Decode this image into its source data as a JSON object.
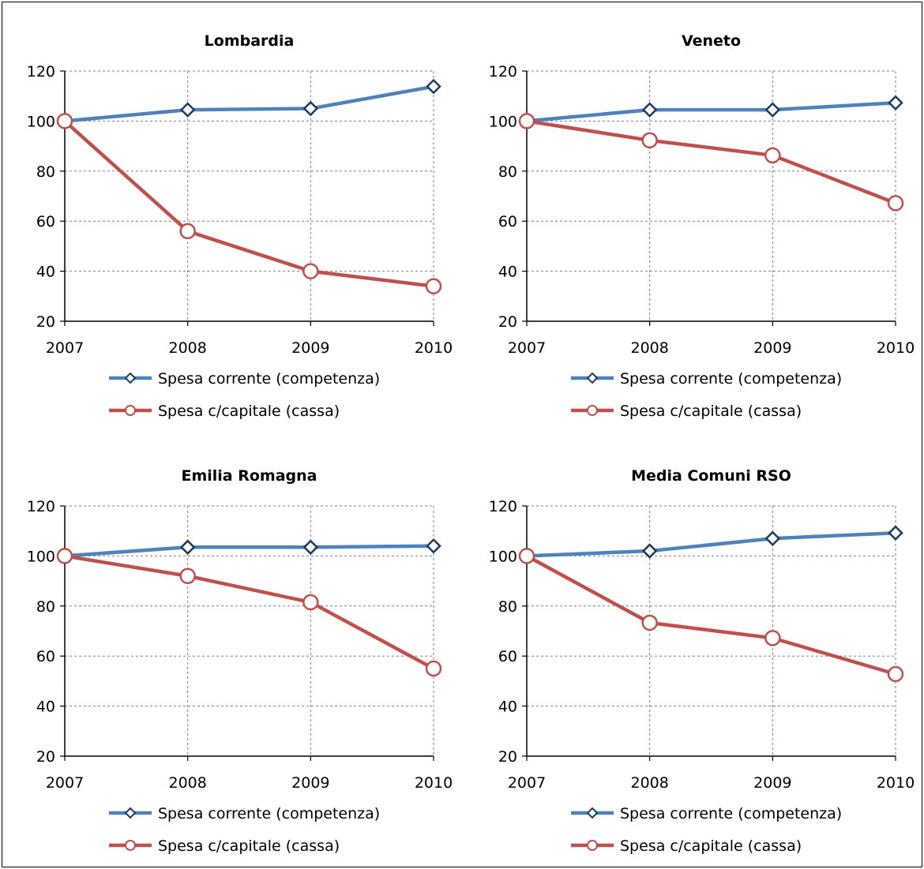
{
  "chart_data": [
    {
      "type": "line",
      "title": "Lombardia",
      "x": [
        "2007",
        "2008",
        "2009",
        "2010"
      ],
      "ylim": [
        20,
        120
      ],
      "yticks": [
        20,
        40,
        60,
        80,
        100,
        120
      ],
      "grid": true,
      "legend_position": "bottom",
      "series": [
        {
          "name": "Spesa corrente (competenza)",
          "color": "#4f81bd",
          "marker": "diamond",
          "values": [
            100,
            104.5,
            105,
            113.8
          ]
        },
        {
          "name": "Spesa c/capitale (cassa)",
          "color": "#c0504d",
          "marker": "circle",
          "values": [
            100,
            56,
            40,
            34
          ]
        }
      ]
    },
    {
      "type": "line",
      "title": "Veneto",
      "x": [
        "2007",
        "2008",
        "2009",
        "2010"
      ],
      "ylim": [
        20,
        120
      ],
      "yticks": [
        20,
        40,
        60,
        80,
        100,
        120
      ],
      "grid": true,
      "legend_position": "bottom",
      "series": [
        {
          "name": "Spesa corrente (competenza)",
          "color": "#4f81bd",
          "marker": "diamond",
          "values": [
            100,
            104.5,
            104.5,
            107.3
          ]
        },
        {
          "name": "Spesa c/capitale (cassa)",
          "color": "#c0504d",
          "marker": "circle",
          "values": [
            100,
            92.3,
            86.3,
            67.2
          ]
        }
      ]
    },
    {
      "type": "line",
      "title": "Emilia  Romagna",
      "x": [
        "2007",
        "2008",
        "2009",
        "2010"
      ],
      "ylim": [
        20,
        120
      ],
      "yticks": [
        20,
        40,
        60,
        80,
        100,
        120
      ],
      "grid": true,
      "legend_position": "bottom",
      "series": [
        {
          "name": "Spesa corrente (competenza)",
          "color": "#4f81bd",
          "marker": "diamond",
          "values": [
            100,
            103.5,
            103.5,
            104
          ]
        },
        {
          "name": "Spesa c/capitale (cassa)",
          "color": "#c0504d",
          "marker": "circle",
          "values": [
            100,
            92,
            81.5,
            55
          ]
        }
      ]
    },
    {
      "type": "line",
      "title": "Media Comuni  RSO",
      "x": [
        "2007",
        "2008",
        "2009",
        "2010"
      ],
      "ylim": [
        20,
        120
      ],
      "yticks": [
        20,
        40,
        60,
        80,
        100,
        120
      ],
      "grid": true,
      "legend_position": "bottom",
      "series": [
        {
          "name": "Spesa corrente (competenza)",
          "color": "#4f81bd",
          "marker": "diamond",
          "values": [
            100,
            102,
            107,
            109.2
          ]
        },
        {
          "name": "Spesa c/capitale (cassa)",
          "color": "#c0504d",
          "marker": "circle",
          "values": [
            100,
            73.3,
            67.2,
            52.8
          ]
        }
      ]
    }
  ]
}
